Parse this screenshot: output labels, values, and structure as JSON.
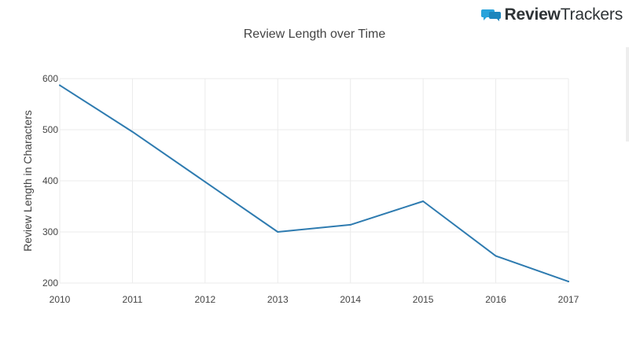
{
  "brand": {
    "name_part1": "Review",
    "name_part2": "Trackers",
    "icon": "speech-bubbles-logo-icon",
    "color": "#29a3db"
  },
  "chart_data": {
    "type": "line",
    "title": "Review Length over Time",
    "xlabel": "",
    "ylabel": "Review Length in Characters",
    "x": [
      2010,
      2011,
      2012,
      2013,
      2014,
      2015,
      2016,
      2017
    ],
    "series": [
      {
        "values": [
          587,
          496,
          398,
          300,
          314,
          360,
          253,
          203
        ],
        "color": "#2e7bb0"
      }
    ],
    "xlim": [
      2010,
      2017
    ],
    "ylim": [
      200,
      600
    ],
    "yticks": [
      200,
      300,
      400,
      500,
      600
    ],
    "xticks": [
      2010,
      2011,
      2012,
      2013,
      2014,
      2015,
      2016,
      2017
    ],
    "grid": true,
    "legend": "none"
  }
}
